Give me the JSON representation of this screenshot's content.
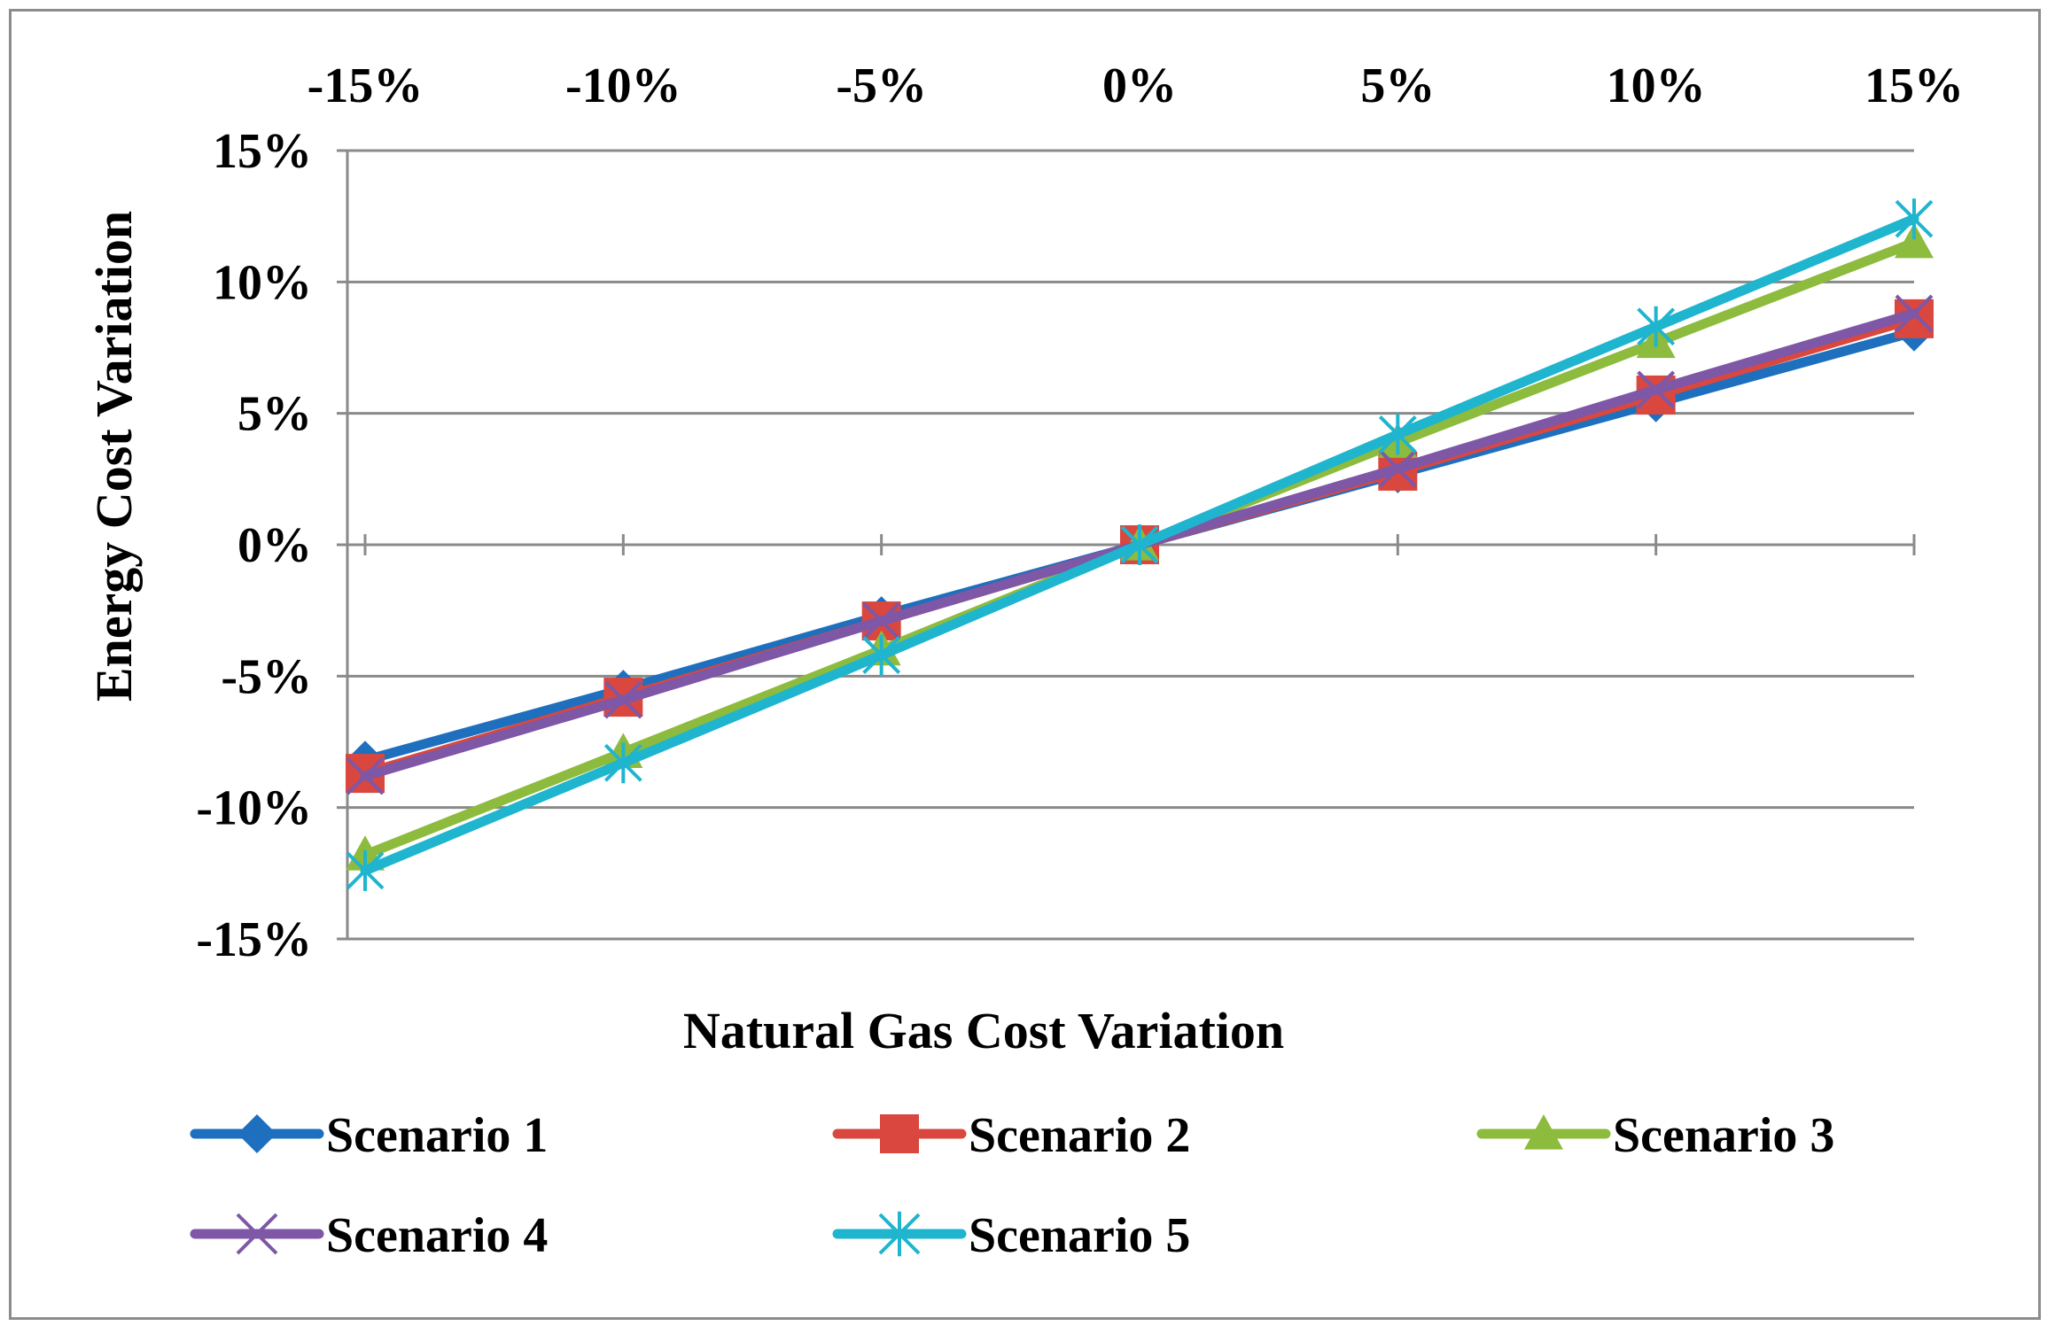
{
  "chart_data": {
    "type": "line",
    "title": "",
    "xlabel": "Natural Gas Cost Variation",
    "ylabel": "Energy Cost Variation",
    "x": [
      -15,
      -10,
      -5,
      0,
      5,
      10,
      15
    ],
    "x_tick_labels": [
      "-15%",
      "-10%",
      "-5%",
      "0%",
      "5%",
      "10%",
      "15%"
    ],
    "y_tick_values": [
      15,
      10,
      5,
      0,
      -5,
      -10,
      -15
    ],
    "y_tick_labels": [
      "15%",
      "10%",
      "5%",
      "0%",
      "-5%",
      "-10%",
      "-15%"
    ],
    "xlim": [
      -15,
      15
    ],
    "ylim": [
      -15,
      15
    ],
    "x_axis_position": "top",
    "grid": true,
    "legend_position": "bottom",
    "series": [
      {
        "name": "Scenario 1",
        "color": "#1f6fbf",
        "marker": "diamond",
        "values": [
          -8.2,
          -5.5,
          -2.7,
          0,
          2.7,
          5.4,
          8.1
        ]
      },
      {
        "name": "Scenario 2",
        "color": "#d9473f",
        "marker": "square",
        "values": [
          -8.7,
          -5.8,
          -2.9,
          0,
          2.8,
          5.7,
          8.6
        ]
      },
      {
        "name": "Scenario 3",
        "color": "#8dbb3d",
        "marker": "triangle",
        "values": [
          -11.8,
          -7.9,
          -4.0,
          0,
          3.9,
          7.7,
          11.5
        ]
      },
      {
        "name": "Scenario 4",
        "color": "#7e57a6",
        "marker": "x",
        "values": [
          -8.8,
          -5.9,
          -2.9,
          0,
          2.9,
          5.9,
          8.8
        ]
      },
      {
        "name": "Scenario 5",
        "color": "#1fb5cf",
        "marker": "star",
        "values": [
          -12.4,
          -8.3,
          -4.2,
          0,
          4.2,
          8.3,
          12.4
        ]
      }
    ]
  }
}
